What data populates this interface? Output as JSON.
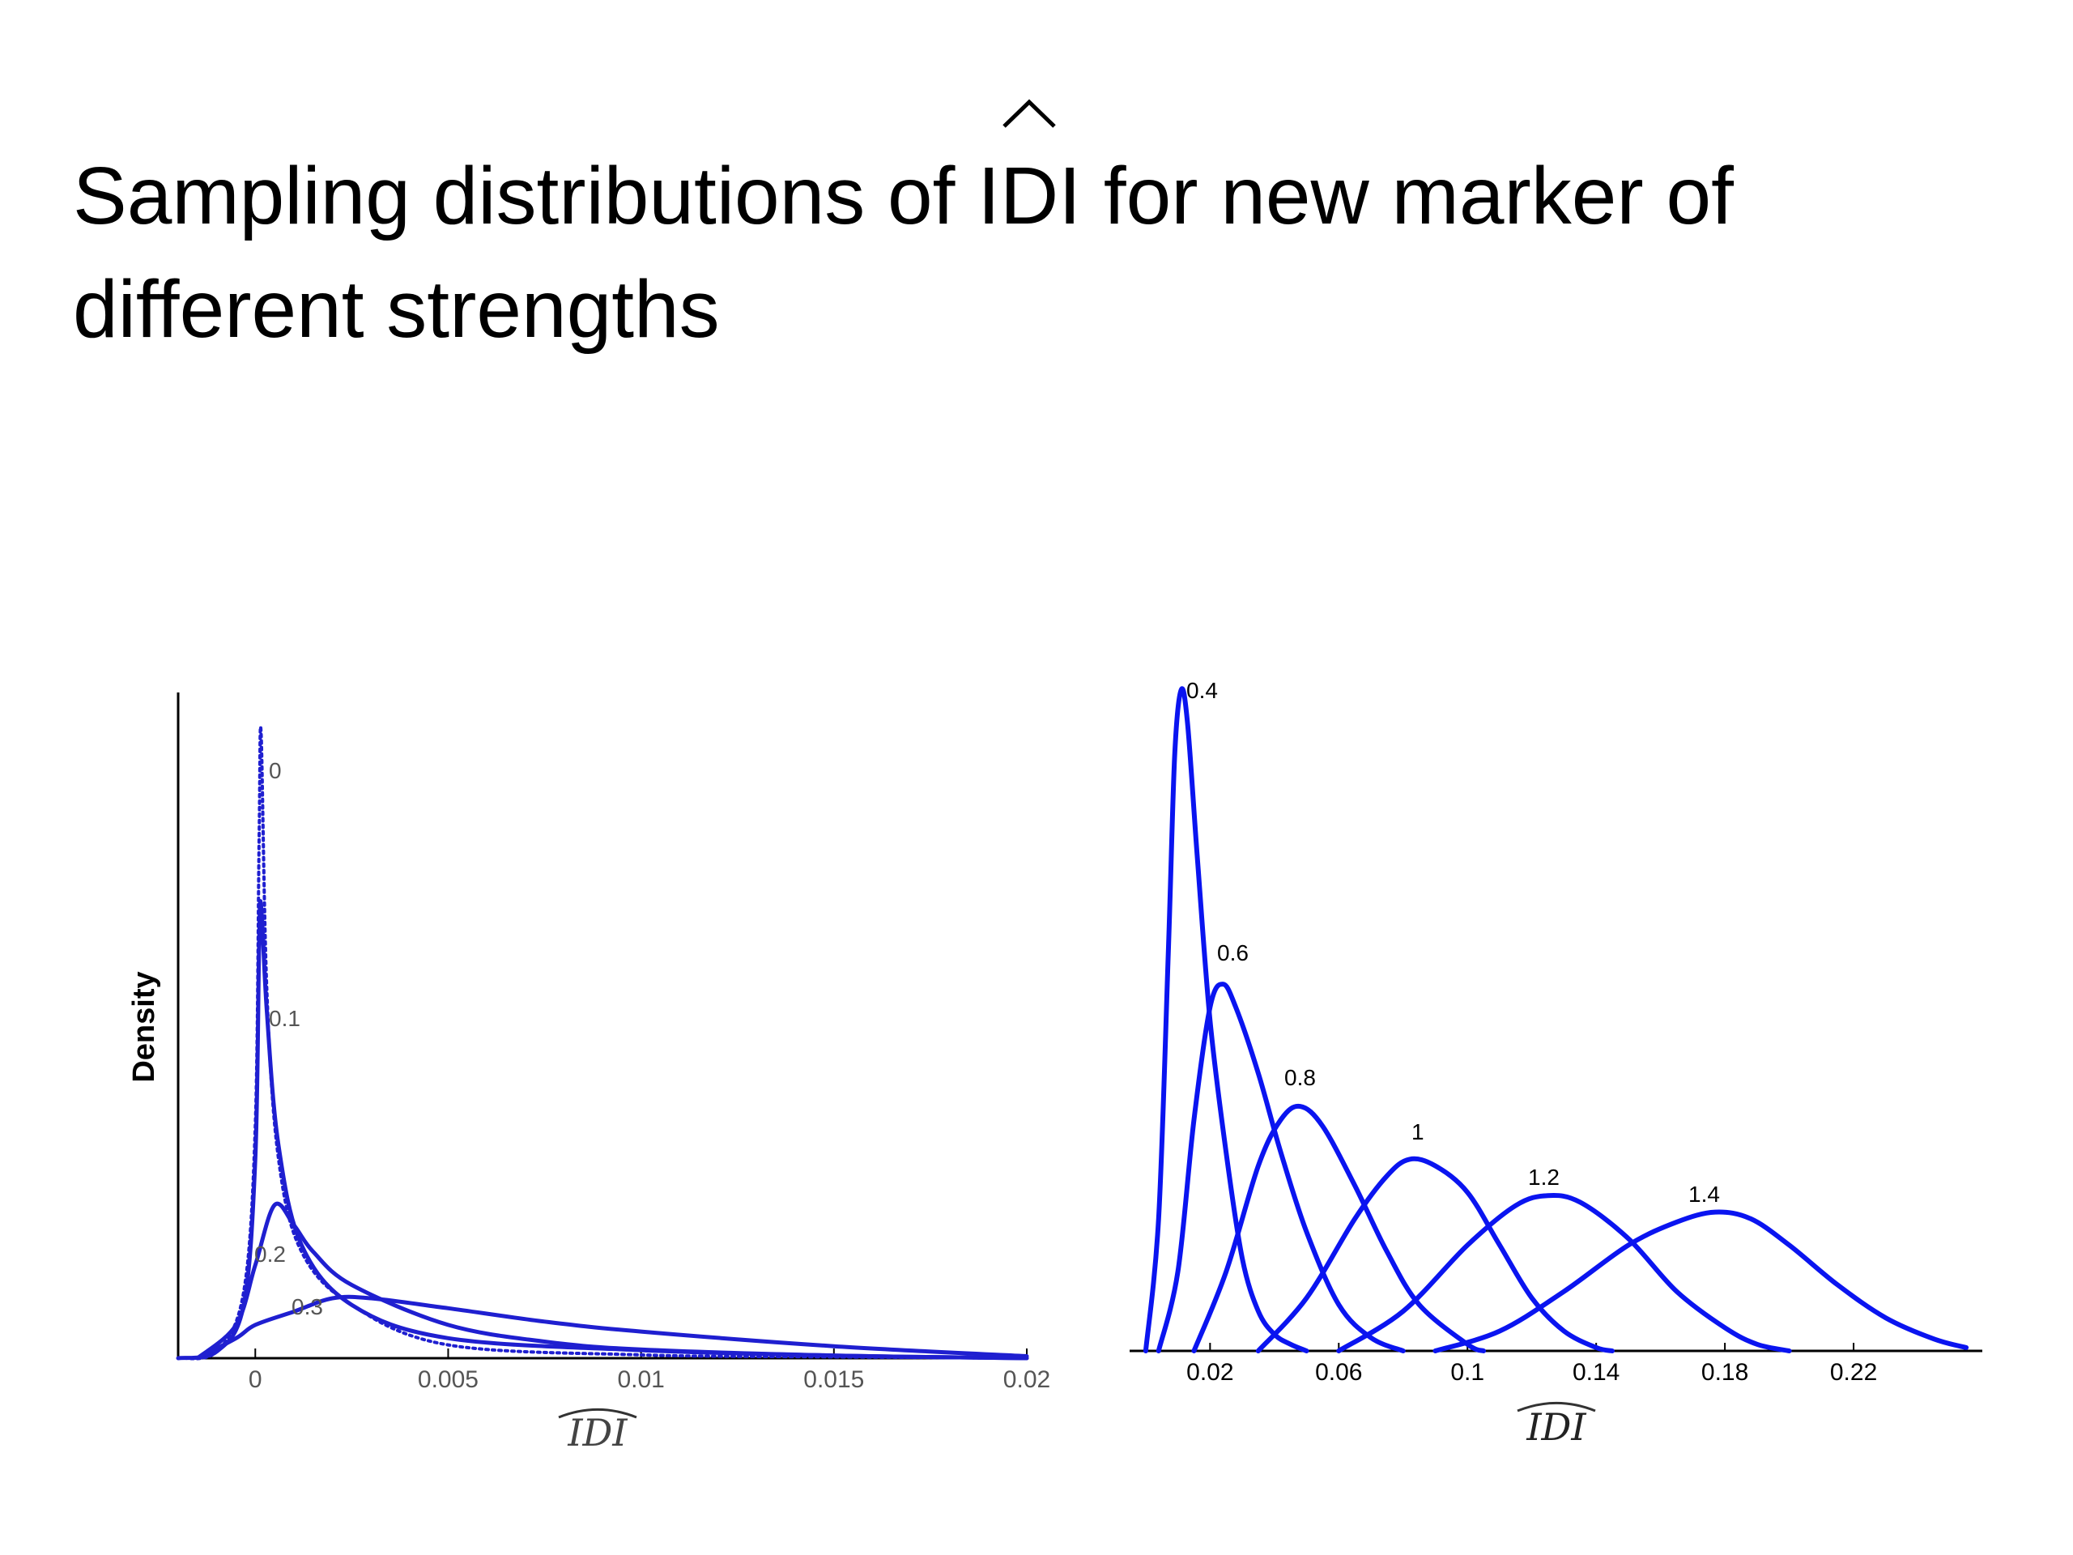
{
  "slide": {
    "title_part1": "Sampling distributions of ",
    "title_idi": "IDI",
    "title_part2": " for new marker of different strengths"
  },
  "colors": {
    "curve_left": "#1f1fd0",
    "curve_right": "#0a14f0",
    "axis": "#000000",
    "tick_left": "#555555"
  },
  "chart_data": [
    {
      "type": "line",
      "ylabel": "Density",
      "xlabel": "IDI",
      "xlabel_hat": true,
      "xlim": [
        -0.002,
        0.02
      ],
      "x_ticks": [
        0,
        0.005,
        0.01,
        0.015,
        0.02
      ],
      "x_tick_labels": [
        "0",
        "0.005",
        "0.01",
        "0.015",
        "0.02"
      ],
      "y_ticks": [],
      "grid": false,
      "series": [
        {
          "name": "0",
          "style": "dotted",
          "points": [
            [
              -0.002,
              0.0
            ],
            [
              -0.001,
              0.01
            ],
            [
              -0.0003,
              0.1
            ],
            [
              0.0,
              0.35
            ],
            [
              0.0001,
              0.78
            ],
            [
              0.00015,
              0.94
            ],
            [
              0.0003,
              0.55
            ],
            [
              0.0006,
              0.3
            ],
            [
              0.0012,
              0.16
            ],
            [
              0.0025,
              0.08
            ],
            [
              0.005,
              0.02
            ],
            [
              0.01,
              0.005
            ],
            [
              0.015,
              0.002
            ],
            [
              0.02,
              0.0
            ]
          ]
        },
        {
          "name": "0.1",
          "style": "solid",
          "points": [
            [
              -0.002,
              0.0
            ],
            [
              -0.001,
              0.01
            ],
            [
              -0.0003,
              0.08
            ],
            [
              0.0,
              0.3
            ],
            [
              0.0001,
              0.62
            ],
            [
              0.00015,
              0.68
            ],
            [
              0.0003,
              0.52
            ],
            [
              0.0006,
              0.32
            ],
            [
              0.0012,
              0.17
            ],
            [
              0.0025,
              0.08
            ],
            [
              0.005,
              0.03
            ],
            [
              0.01,
              0.012
            ],
            [
              0.015,
              0.004
            ],
            [
              0.02,
              0.0
            ]
          ]
        },
        {
          "name": "0.2",
          "style": "solid",
          "points": [
            [
              -0.0015,
              0.0
            ],
            [
              -0.0005,
              0.05
            ],
            [
              0.0,
              0.14
            ],
            [
              0.0005,
              0.23
            ],
            [
              0.001,
              0.2
            ],
            [
              0.0015,
              0.16
            ],
            [
              0.0025,
              0.11
            ],
            [
              0.005,
              0.05
            ],
            [
              0.0075,
              0.025
            ],
            [
              0.01,
              0.013
            ],
            [
              0.015,
              0.004
            ],
            [
              0.02,
              0.0
            ]
          ]
        },
        {
          "name": "0.3",
          "style": "solid",
          "points": [
            [
              -0.0015,
              0.0
            ],
            [
              -0.0005,
              0.03
            ],
            [
              0.0,
              0.05
            ],
            [
              0.001,
              0.07
            ],
            [
              0.002,
              0.09
            ],
            [
              0.003,
              0.09
            ],
            [
              0.005,
              0.075
            ],
            [
              0.0075,
              0.055
            ],
            [
              0.01,
              0.04
            ],
            [
              0.015,
              0.018
            ],
            [
              0.02,
              0.003
            ]
          ]
        }
      ],
      "curve_labels": [
        "0",
        "0.1",
        "0.2",
        "0.3"
      ]
    },
    {
      "type": "line",
      "ylabel": "",
      "xlabel": "IDI",
      "xlabel_hat": true,
      "xlim": [
        -0.005,
        0.26
      ],
      "x_ticks": [
        0.02,
        0.06,
        0.1,
        0.14,
        0.18,
        0.22
      ],
      "x_tick_labels": [
        "0.02",
        "0.06",
        "0.1",
        "0.14",
        "0.18",
        "0.22"
      ],
      "grid": false,
      "series": [
        {
          "name": "0.4",
          "points": [
            [
              0.0,
              0.0
            ],
            [
              0.004,
              0.2
            ],
            [
              0.007,
              0.6
            ],
            [
              0.009,
              0.9
            ],
            [
              0.011,
              1.0
            ],
            [
              0.013,
              0.95
            ],
            [
              0.016,
              0.75
            ],
            [
              0.02,
              0.5
            ],
            [
              0.025,
              0.3
            ],
            [
              0.03,
              0.14
            ],
            [
              0.035,
              0.06
            ],
            [
              0.04,
              0.025
            ],
            [
              0.045,
              0.01
            ],
            [
              0.05,
              0.0
            ]
          ]
        },
        {
          "name": "0.6",
          "points": [
            [
              0.004,
              0.0
            ],
            [
              0.01,
              0.12
            ],
            [
              0.015,
              0.35
            ],
            [
              0.02,
              0.52
            ],
            [
              0.024,
              0.555
            ],
            [
              0.028,
              0.52
            ],
            [
              0.035,
              0.42
            ],
            [
              0.042,
              0.3
            ],
            [
              0.05,
              0.18
            ],
            [
              0.06,
              0.07
            ],
            [
              0.07,
              0.02
            ],
            [
              0.08,
              0.0
            ]
          ]
        },
        {
          "name": "0.8",
          "points": [
            [
              0.015,
              0.0
            ],
            [
              0.025,
              0.12
            ],
            [
              0.035,
              0.28
            ],
            [
              0.042,
              0.35
            ],
            [
              0.048,
              0.37
            ],
            [
              0.055,
              0.34
            ],
            [
              0.065,
              0.25
            ],
            [
              0.075,
              0.15
            ],
            [
              0.085,
              0.07
            ],
            [
              0.1,
              0.01
            ],
            [
              0.105,
              0.0
            ]
          ]
        },
        {
          "name": "1",
          "points": [
            [
              0.035,
              0.0
            ],
            [
              0.05,
              0.08
            ],
            [
              0.065,
              0.2
            ],
            [
              0.075,
              0.265
            ],
            [
              0.082,
              0.29
            ],
            [
              0.09,
              0.28
            ],
            [
              0.1,
              0.24
            ],
            [
              0.11,
              0.16
            ],
            [
              0.12,
              0.08
            ],
            [
              0.13,
              0.03
            ],
            [
              0.14,
              0.005
            ],
            [
              0.145,
              0.0
            ]
          ]
        },
        {
          "name": "1.2",
          "points": [
            [
              0.06,
              0.0
            ],
            [
              0.08,
              0.06
            ],
            [
              0.1,
              0.16
            ],
            [
              0.115,
              0.22
            ],
            [
              0.125,
              0.235
            ],
            [
              0.135,
              0.225
            ],
            [
              0.15,
              0.17
            ],
            [
              0.165,
              0.09
            ],
            [
              0.18,
              0.035
            ],
            [
              0.19,
              0.01
            ],
            [
              0.2,
              0.0
            ]
          ]
        },
        {
          "name": "1.4",
          "points": [
            [
              0.09,
              0.0
            ],
            [
              0.11,
              0.03
            ],
            [
              0.13,
              0.09
            ],
            [
              0.15,
              0.16
            ],
            [
              0.165,
              0.195
            ],
            [
              0.177,
              0.21
            ],
            [
              0.188,
              0.2
            ],
            [
              0.2,
              0.16
            ],
            [
              0.215,
              0.1
            ],
            [
              0.23,
              0.05
            ],
            [
              0.245,
              0.018
            ],
            [
              0.255,
              0.005
            ]
          ]
        }
      ],
      "curve_labels": [
        "0.4",
        "0.6",
        "0.8",
        "1",
        "1.2",
        "1.4"
      ]
    }
  ]
}
